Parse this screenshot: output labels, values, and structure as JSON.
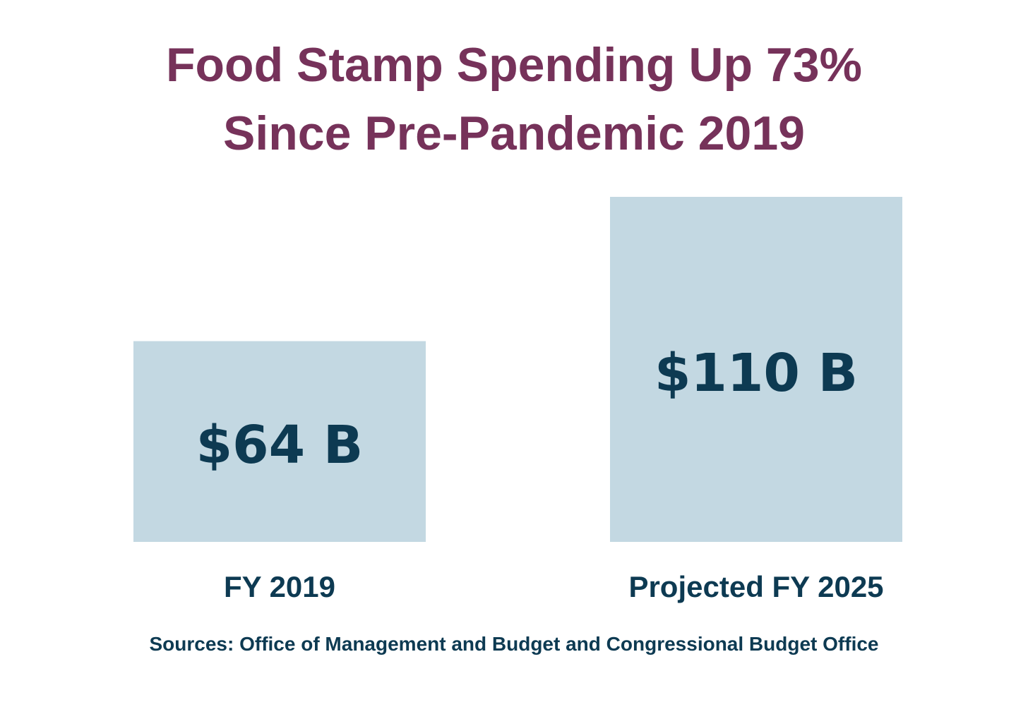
{
  "title_lines": [
    "Food Stamp Spending Up 73%",
    "Since Pre-Pandemic 2019"
  ],
  "source": "Sources: Office of Management and Budget and Congressional Budget Office",
  "colors": {
    "title": "#76325a",
    "bar_fill": "#c3d8e2",
    "label_text": "#0d3a52"
  },
  "chart_data": {
    "type": "bar",
    "title": "Food Stamp Spending Up 73% Since Pre-Pandemic 2019",
    "categories": [
      "FY 2019",
      "Projected FY 2025"
    ],
    "values": [
      64,
      110
    ],
    "value_labels": [
      "$64 B",
      "$110 B"
    ],
    "unit": "Billion USD",
    "xlabel": "",
    "ylabel": "",
    "grid": false,
    "legend": "none"
  }
}
